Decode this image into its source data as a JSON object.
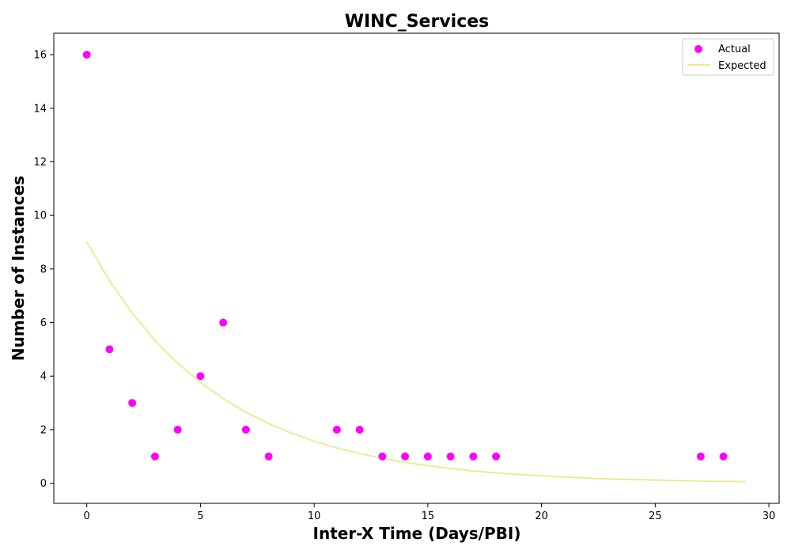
{
  "chart_data": {
    "type": "scatter",
    "title": "WINC_Services",
    "xlabel": "Inter-X Time (Days/PBI)",
    "ylabel": "Number of Instances",
    "xlim": [
      -1.45,
      30.45
    ],
    "ylim": [
      -0.75,
      16.8
    ],
    "xticks": [
      0,
      5,
      10,
      15,
      20,
      25,
      30
    ],
    "yticks": [
      0,
      2,
      4,
      6,
      8,
      10,
      12,
      14,
      16
    ],
    "grid": false,
    "legend_position": "top-right",
    "series": [
      {
        "name": "Actual",
        "kind": "scatter",
        "color": "#ff00ff",
        "x": [
          0,
          1,
          2,
          3,
          4,
          5,
          6,
          7,
          8,
          11,
          12,
          13,
          14,
          15,
          16,
          17,
          18,
          27,
          28
        ],
        "y": [
          16,
          5,
          3,
          1,
          2,
          4,
          6,
          2,
          1,
          2,
          2,
          1,
          1,
          1,
          1,
          1,
          1,
          1,
          1
        ]
      },
      {
        "name": "Expected",
        "kind": "line",
        "color": "#f0e68c",
        "x": [
          0,
          1,
          2,
          3,
          4,
          5,
          6,
          7,
          8,
          9,
          10,
          11,
          12,
          13,
          14,
          15,
          16,
          17,
          18,
          19,
          20,
          21,
          22,
          23,
          24,
          25,
          26,
          27,
          28,
          29
        ],
        "y": [
          9.0,
          7.56,
          6.35,
          5.33,
          4.48,
          3.76,
          3.16,
          2.65,
          2.23,
          1.87,
          1.57,
          1.32,
          1.11,
          0.93,
          0.78,
          0.66,
          0.55,
          0.46,
          0.39,
          0.33,
          0.28,
          0.23,
          0.19,
          0.16,
          0.14,
          0.12,
          0.1,
          0.08,
          0.07,
          0.06
        ]
      }
    ]
  }
}
